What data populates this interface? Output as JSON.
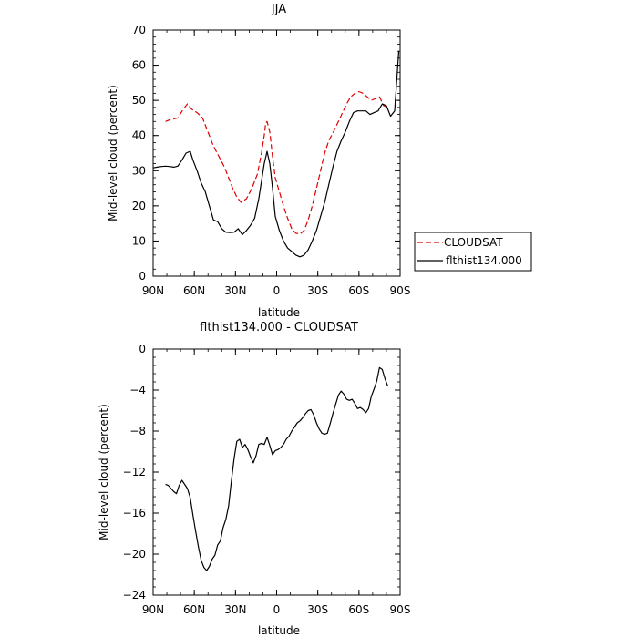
{
  "chart_data": [
    {
      "type": "line",
      "title": "JJA",
      "xlabel": "latitude",
      "ylabel": "Mid-level cloud (percent)",
      "xlim": [
        90,
        -90
      ],
      "ylim": [
        0,
        70
      ],
      "x_ticks": [
        90,
        60,
        30,
        0,
        -30,
        -60,
        -90
      ],
      "x_tick_labels": [
        "90N",
        "60N",
        "30N",
        "0",
        "30S",
        "60S",
        "90S"
      ],
      "y_ticks": [
        0,
        10,
        20,
        30,
        40,
        50,
        60,
        70
      ],
      "legend": {
        "position": "right",
        "entries": [
          "CLOUDSAT",
          "flthist134.000"
        ]
      },
      "series": [
        {
          "name": "CLOUDSAT",
          "color": "#e00000",
          "dash": true,
          "x": [
            81,
            78,
            72,
            68,
            65,
            62,
            58,
            54,
            50,
            46,
            42,
            38,
            35,
            32,
            29,
            26,
            22,
            18,
            14,
            11,
            9,
            8,
            7,
            5,
            3,
            1,
            -2,
            -5,
            -8,
            -11,
            -14,
            -17,
            -20,
            -23,
            -26,
            -29,
            -32,
            -35,
            -38,
            -42,
            -45,
            -48,
            -51,
            -54,
            -57,
            -60,
            -63,
            -66,
            -69,
            -72,
            -75,
            -78,
            -81
          ],
          "y": [
            44,
            44.5,
            45,
            47.5,
            49,
            47.5,
            46.5,
            45,
            41,
            37,
            34,
            31,
            28,
            25,
            22.5,
            21,
            22,
            25,
            29,
            35,
            40,
            43.5,
            44,
            41,
            34,
            28,
            24,
            20,
            16.5,
            13.5,
            12.2,
            12,
            13,
            16,
            20,
            25,
            30,
            35,
            38.5,
            41.5,
            44,
            46.5,
            49,
            51,
            52,
            52.5,
            52,
            51,
            50,
            50.5,
            51,
            48.5,
            48
          ]
        },
        {
          "name": "flthist134.000",
          "color": "#000000",
          "dash": false,
          "x": [
            90,
            87,
            84,
            81,
            78,
            75,
            72,
            69,
            66,
            63,
            61,
            58,
            55,
            52,
            49,
            46,
            43,
            40,
            37,
            34,
            31,
            28,
            25,
            22,
            19,
            16,
            13,
            11,
            9,
            7,
            5,
            3,
            1,
            -2,
            -5,
            -8,
            -11,
            -14,
            -17,
            -20,
            -23,
            -26,
            -29,
            -32,
            -35,
            -38,
            -41,
            -44,
            -47,
            -50,
            -53,
            -56,
            -59,
            -62,
            -65,
            -68,
            -71,
            -74,
            -77,
            -80,
            -83,
            -86,
            -89
          ],
          "y": [
            30.8,
            31,
            31.2,
            31.3,
            31.2,
            31,
            31.3,
            33,
            35,
            35.5,
            33,
            30,
            26.5,
            24,
            20,
            16,
            15.5,
            13.5,
            12.5,
            12.4,
            12.5,
            13.5,
            11.8,
            13,
            14.5,
            16.5,
            22,
            27,
            32,
            35.5,
            32,
            25,
            17,
            13,
            10,
            8,
            7,
            6,
            5.5,
            6,
            7.5,
            10,
            13,
            17,
            21,
            26,
            31,
            35.5,
            38.5,
            41,
            44,
            46.5,
            47,
            47,
            47,
            46,
            46.5,
            47,
            49,
            48.5,
            45.5,
            47,
            64
          ]
        }
      ]
    },
    {
      "type": "line",
      "title": "flthist134.000 - CLOUDSAT",
      "xlabel": "latitude",
      "ylabel": "Mid-level cloud (percent)",
      "xlim": [
        90,
        -90
      ],
      "ylim": [
        -24,
        0
      ],
      "x_ticks": [
        90,
        60,
        30,
        0,
        -30,
        -60,
        -90
      ],
      "x_tick_labels": [
        "90N",
        "60N",
        "30N",
        "0",
        "30S",
        "60S",
        "90S"
      ],
      "y_ticks": [
        -24,
        -20,
        -16,
        -12,
        -8,
        -4,
        0
      ],
      "series": [
        {
          "color": "#000000",
          "dash": false,
          "x": [
            81,
            79,
            77,
            75,
            73,
            71,
            69,
            67,
            65,
            63,
            61,
            59,
            57,
            55,
            53,
            51,
            49,
            47,
            45,
            43,
            41,
            39,
            37,
            35,
            33,
            31,
            29,
            27,
            25,
            23,
            21,
            19,
            17,
            15,
            13,
            11,
            9,
            7,
            5,
            3,
            1,
            -1,
            -3,
            -5,
            -7,
            -9,
            -11,
            -13,
            -15,
            -17,
            -19,
            -21,
            -23,
            -25,
            -27,
            -29,
            -31,
            -33,
            -35,
            -37,
            -39,
            -41,
            -43,
            -45,
            -47,
            -49,
            -51,
            -53,
            -55,
            -57,
            -59,
            -61,
            -63,
            -65,
            -67,
            -69,
            -71,
            -73,
            -75,
            -77,
            -79,
            -81
          ],
          "y": [
            -13.2,
            -13.3,
            -13.6,
            -13.9,
            -14.1,
            -13.3,
            -12.8,
            -13.2,
            -13.6,
            -14.5,
            -16.2,
            -17.8,
            -19.3,
            -20.6,
            -21.3,
            -21.6,
            -21.2,
            -20.5,
            -20.1,
            -19.1,
            -18.7,
            -17.4,
            -16.6,
            -15.3,
            -12.9,
            -10.7,
            -9,
            -8.8,
            -9.6,
            -9.3,
            -9.8,
            -10.5,
            -11.1,
            -10.4,
            -9.3,
            -9.2,
            -9.3,
            -8.6,
            -9.4,
            -10.3,
            -9.9,
            -9.8,
            -9.6,
            -9.3,
            -8.8,
            -8.5,
            -8,
            -7.6,
            -7.2,
            -7,
            -6.7,
            -6.3,
            -6,
            -5.9,
            -6.4,
            -7.2,
            -7.8,
            -8.2,
            -8.3,
            -8.2,
            -7.3,
            -6.3,
            -5.4,
            -4.5,
            -4.1,
            -4.4,
            -4.9,
            -5,
            -4.9,
            -5.3,
            -5.8,
            -5.7,
            -5.9,
            -6.2,
            -5.8,
            -4.6,
            -3.9,
            -3.1,
            -1.8,
            -2,
            -2.9,
            -3.6
          ]
        }
      ]
    }
  ]
}
